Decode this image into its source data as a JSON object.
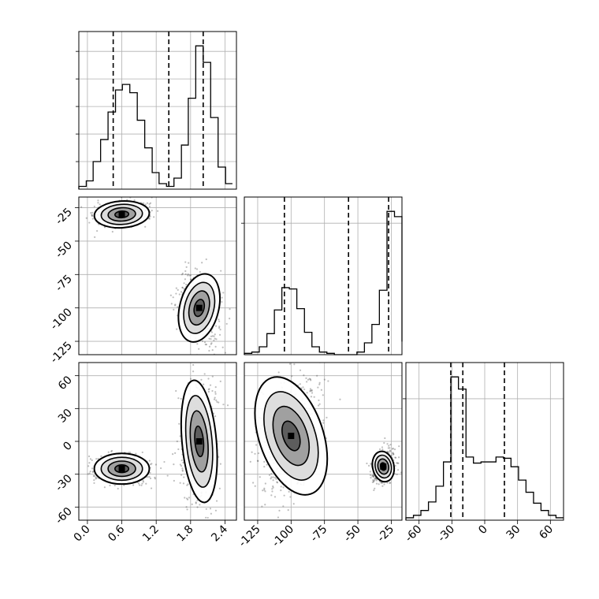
{
  "chart_data": {
    "type": "corner",
    "grid": true,
    "parameters": [
      {
        "ticks": [
          "0.0",
          "0.6",
          "1.2",
          "1.8",
          "2.4"
        ],
        "tick_values": [
          0.0,
          0.6,
          1.2,
          1.8,
          2.4
        ],
        "range": [
          -0.15,
          2.6
        ],
        "quantiles": [
          0.45,
          1.42,
          2.02
        ],
        "histogram": {
          "edges": [
            -0.15,
            -0.02,
            0.1,
            0.23,
            0.36,
            0.49,
            0.61,
            0.74,
            0.87,
            1.0,
            1.13,
            1.25,
            1.38,
            1.51,
            1.64,
            1.76,
            1.89,
            2.02,
            2.15,
            2.28,
            2.41,
            2.53
          ],
          "counts": [
            1,
            3,
            10,
            18,
            28,
            36,
            38,
            35,
            25,
            15,
            6,
            2,
            1,
            4,
            16,
            33,
            52,
            46,
            26,
            8,
            2
          ]
        }
      },
      {
        "ticks": [
          "-125",
          "-100",
          "-75",
          "-50",
          "-25"
        ],
        "tick_values": [
          -125,
          -100,
          -75,
          -50,
          -25
        ],
        "range": [
          -135,
          -17
        ],
        "quantiles": [
          -105,
          -57,
          -27
        ],
        "histogram": {
          "edges": [
            -135,
            -129.4,
            -123.8,
            -118.1,
            -112.5,
            -106.9,
            -101.3,
            -95.7,
            -90.0,
            -84.4,
            -78.8,
            -73.2,
            -67.6,
            -62.0,
            -56.3,
            -50.7,
            -45.1,
            -39.5,
            -33.9,
            -28.2,
            -22.6,
            -17
          ],
          "counts": [
            1,
            2,
            6,
            16,
            34,
            51,
            50,
            35,
            17,
            6,
            2,
            1,
            0,
            0,
            0,
            2,
            9,
            23,
            49,
            109,
            105,
            10
          ]
        }
      },
      {
        "ticks": [
          "-60",
          "-30",
          "0",
          "30",
          "60"
        ],
        "tick_values": [
          -60,
          -30,
          0,
          30,
          60
        ],
        "range": [
          -72,
          72
        ],
        "quantiles": [
          -31,
          -20,
          18
        ],
        "histogram": {
          "edges": [
            -72,
            -65.1,
            -58.3,
            -51.4,
            -44.6,
            -37.7,
            -30.9,
            -24.0,
            -17.1,
            -10.3,
            -3.4,
            3.4,
            10.3,
            17.1,
            24.0,
            30.9,
            37.7,
            44.6,
            51.4,
            58.3,
            65.1,
            72
          ],
          "counts": [
            2,
            4,
            8,
            15,
            28,
            48,
            118,
            108,
            52,
            47,
            48,
            48,
            52,
            51,
            44,
            33,
            23,
            14,
            8,
            4,
            2
          ]
        }
      }
    ],
    "pairs": [
      {
        "x_param": 0,
        "y_param": 1,
        "modes": [
          {
            "mean": [
              0.6,
              -30
            ],
            "sd": [
              0.24,
              5
            ],
            "corr": 0.25,
            "n": 500
          },
          {
            "mean": [
              1.95,
              -100
            ],
            "sd": [
              0.17,
              13
            ],
            "corr": -0.3,
            "n": 500
          }
        ]
      },
      {
        "x_param": 0,
        "y_param": 2,
        "modes": [
          {
            "mean": [
              0.6,
              -25
            ],
            "sd": [
              0.24,
              7
            ],
            "corr": 0.0,
            "n": 500
          },
          {
            "mean": [
              1.95,
              0
            ],
            "sd": [
              0.15,
              28
            ],
            "corr": 0.05,
            "n": 500
          }
        ]
      },
      {
        "x_param": 1,
        "y_param": 2,
        "modes": [
          {
            "mean": [
              -100,
              5
            ],
            "sd": [
              12,
              28
            ],
            "corr": 0.4,
            "n": 500
          },
          {
            "mean": [
              -31,
              -23
            ],
            "sd": [
              4,
              7
            ],
            "corr": 0.3,
            "n": 500
          }
        ]
      }
    ]
  }
}
